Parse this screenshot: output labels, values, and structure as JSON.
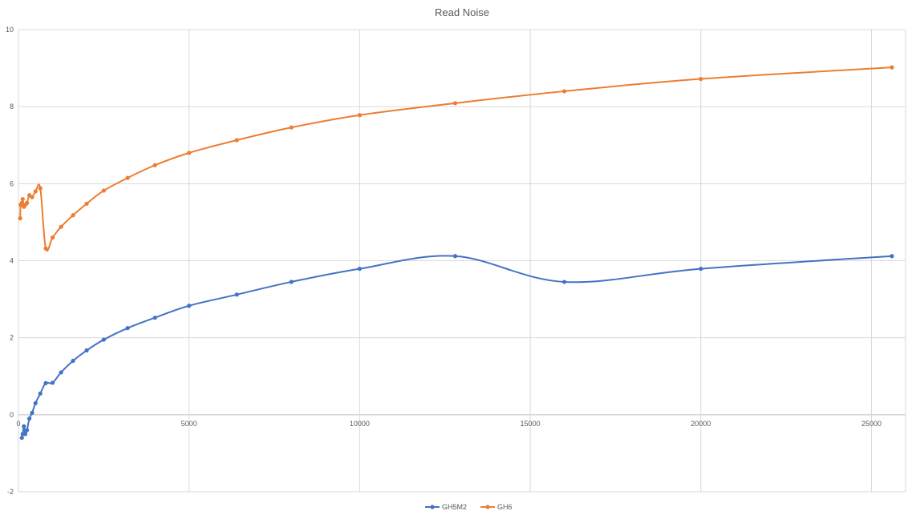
{
  "chart_data": {
    "type": "line",
    "title": "Read Noise",
    "xlabel": "",
    "ylabel": "",
    "xlim": [
      0,
      26000
    ],
    "ylim": [
      -2,
      10
    ],
    "x_ticks": [
      0,
      5000,
      10000,
      15000,
      20000,
      25000
    ],
    "y_ticks": [
      -2,
      0,
      2,
      4,
      6,
      8,
      10
    ],
    "grid": true,
    "legend_position": "bottom",
    "series": [
      {
        "name": "GH5M2",
        "color": "#4472C4",
        "points": [
          [
            100,
            -0.6
          ],
          [
            125,
            -0.5
          ],
          [
            160,
            -0.3
          ],
          [
            200,
            -0.5
          ],
          [
            250,
            -0.4
          ],
          [
            320,
            -0.1
          ],
          [
            400,
            0.05
          ],
          [
            500,
            0.3
          ],
          [
            640,
            0.55
          ],
          [
            800,
            0.82
          ],
          [
            1000,
            0.83
          ],
          [
            1250,
            1.1
          ],
          [
            1600,
            1.4
          ],
          [
            2000,
            1.67
          ],
          [
            2500,
            1.95
          ],
          [
            3200,
            2.25
          ],
          [
            4000,
            2.52
          ],
          [
            5000,
            2.83
          ],
          [
            6400,
            3.12
          ],
          [
            8000,
            3.45
          ],
          [
            10000,
            3.79
          ],
          [
            12800,
            4.12
          ],
          [
            16000,
            3.45
          ],
          [
            20000,
            3.79
          ],
          [
            25600,
            4.12
          ]
        ]
      },
      {
        "name": "GH6",
        "color": "#ED7D31",
        "points": [
          [
            50,
            5.1
          ],
          [
            64,
            5.45
          ],
          [
            100,
            5.5
          ],
          [
            125,
            5.6
          ],
          [
            160,
            5.4
          ],
          [
            200,
            5.45
          ],
          [
            250,
            5.5
          ],
          [
            320,
            5.7
          ],
          [
            400,
            5.65
          ],
          [
            500,
            5.8
          ],
          [
            640,
            5.88
          ],
          [
            800,
            4.32
          ],
          [
            1000,
            4.6
          ],
          [
            1250,
            4.88
          ],
          [
            1600,
            5.18
          ],
          [
            2000,
            5.48
          ],
          [
            2500,
            5.82
          ],
          [
            3200,
            6.15
          ],
          [
            4000,
            6.48
          ],
          [
            5000,
            6.8
          ],
          [
            6400,
            7.13
          ],
          [
            8000,
            7.46
          ],
          [
            10000,
            7.78
          ],
          [
            12800,
            8.09
          ],
          [
            16000,
            8.4
          ],
          [
            20000,
            8.72
          ],
          [
            25600,
            9.02
          ]
        ]
      }
    ]
  }
}
